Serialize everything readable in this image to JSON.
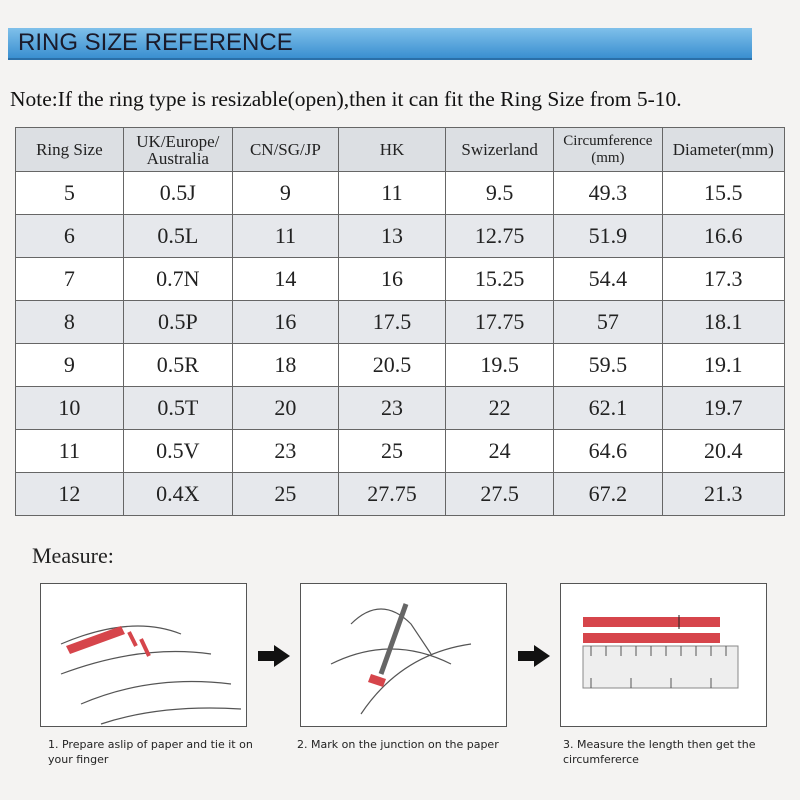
{
  "header": {
    "title": "RING SIZE REFERENCE"
  },
  "note": "Note:If the ring type is resizable(open),then it can fit the Ring Size from 5-10.",
  "table": {
    "columns": [
      "Ring Size",
      "UK/Europe/ Australia",
      "CN/SG/JP",
      "HK",
      "Swizerland",
      "Circumference (mm)",
      "Diameter(mm)"
    ],
    "rows": [
      [
        "5",
        "0.5J",
        "9",
        "11",
        "9.5",
        "49.3",
        "15.5"
      ],
      [
        "6",
        "0.5L",
        "11",
        "13",
        "12.75",
        "51.9",
        "16.6"
      ],
      [
        "7",
        "0.7N",
        "14",
        "16",
        "15.25",
        "54.4",
        "17.3"
      ],
      [
        "8",
        "0.5P",
        "16",
        "17.5",
        "17.75",
        "57",
        "18.1"
      ],
      [
        "9",
        "0.5R",
        "18",
        "20.5",
        "19.5",
        "59.5",
        "19.1"
      ],
      [
        "10",
        "0.5T",
        "20",
        "23",
        "22",
        "62.1",
        "19.7"
      ],
      [
        "11",
        "0.5V",
        "23",
        "25",
        "24",
        "64.6",
        "20.4"
      ],
      [
        "12",
        "0.4X",
        "25",
        "27.75",
        "27.5",
        "67.2",
        "21.3"
      ]
    ]
  },
  "measure": {
    "title": "Measure:",
    "steps": [
      "1. Prepare aslip of paper and tie it on your finger",
      "2. Mark on the junction on the paper",
      "3. Measure the length then get the circumfererce"
    ]
  }
}
